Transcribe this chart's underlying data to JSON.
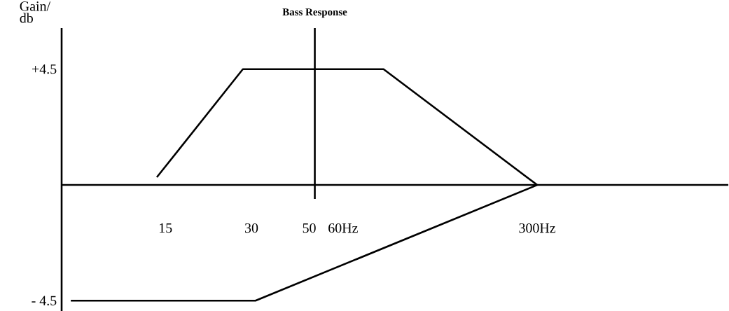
{
  "chart_data": {
    "type": "line",
    "title": "Bass Response",
    "ylabel": "Gain/ db",
    "log": "x",
    "xlim": [
      6.5,
      1400
    ],
    "ylim": [
      -4.9,
      6.1
    ],
    "xticks": [
      15,
      30,
      50,
      {
        "value": 60,
        "label": "60Hz"
      },
      {
        "value": 300,
        "label": "300Hz"
      }
    ],
    "yticks": [
      {
        "value": 4.5,
        "label": "+4.5"
      },
      {
        "value": -4.5,
        "label": "- 4.5"
      }
    ],
    "series": [
      {
        "color": "#000000",
        "x": [
          14,
          28,
          87,
          300
        ],
        "values": [
          0.3,
          4.5,
          4.5,
          0
        ]
      },
      {
        "color": "#000000",
        "x": [
          7,
          31,
          300
        ],
        "values": [
          -4.5,
          -4.5,
          0
        ]
      }
    ],
    "ref_lines": [
      {
        "axis": "x",
        "value": 50,
        "color": "#000000"
      }
    ]
  }
}
